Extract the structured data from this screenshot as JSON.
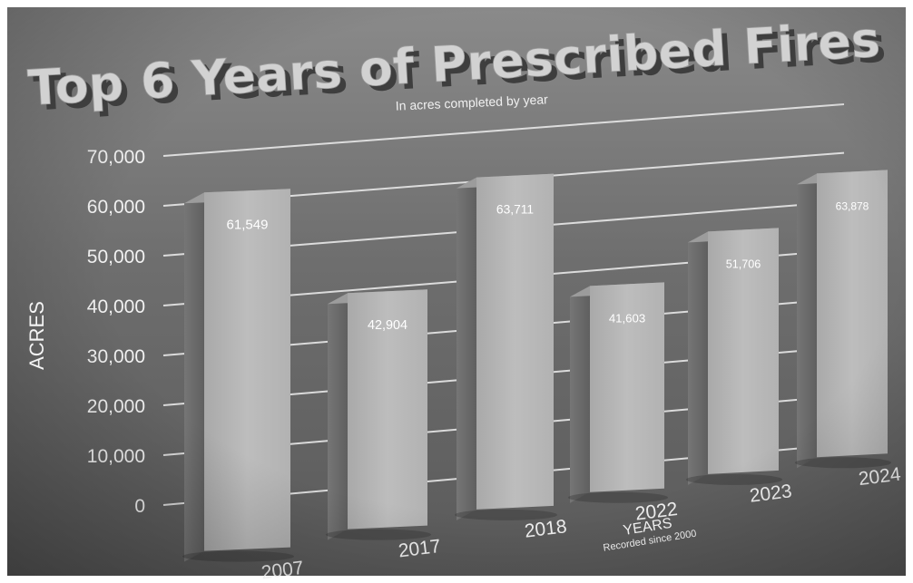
{
  "chart_data": {
    "type": "bar",
    "title": "Top 6 Years of Prescribed Fires",
    "subtitle": "In acres completed by year",
    "ylabel": "ACRES",
    "xlabel": "YEARS",
    "xlabel_note": "Recorded since 2000",
    "categories": [
      "2007",
      "2017",
      "2018",
      "2022",
      "2023",
      "2024"
    ],
    "values": [
      61549,
      42904,
      63711,
      41603,
      51706,
      63878
    ],
    "value_labels": [
      "61,549",
      "42,904",
      "63,711",
      "41,603",
      "51,706",
      "63,878"
    ],
    "ylim": [
      0,
      70000
    ],
    "yticks": [
      0,
      10000,
      20000,
      30000,
      40000,
      50000,
      60000,
      70000
    ],
    "ytick_labels": [
      "0",
      "10,000",
      "20,000",
      "30,000",
      "40,000",
      "50,000",
      "60,000",
      "70,000"
    ],
    "grid": true,
    "style": "3d-perspective-grayscale"
  }
}
